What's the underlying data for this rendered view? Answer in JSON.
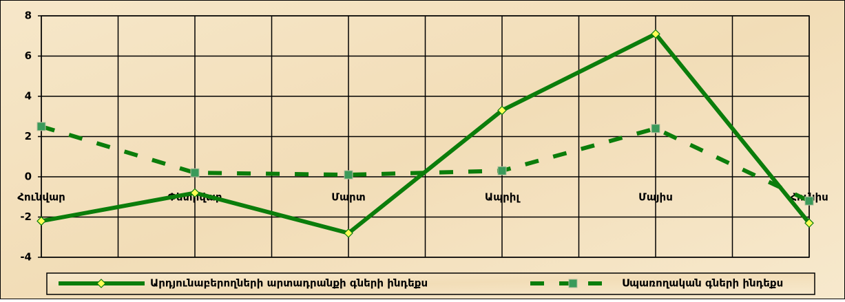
{
  "chart_data": {
    "type": "line",
    "categories": [
      "Հունվար",
      "Փետրվար",
      "Մարտ",
      "Ապրիլ",
      "Մայիս",
      "Հունիս"
    ],
    "series": [
      {
        "name": "Արդյունաբերողների արտադրանքի գների ինդեքս",
        "color": "#0b7d0b",
        "dash": "solid",
        "marker": "diamond",
        "marker_color": "#ffff55",
        "values": [
          -2.2,
          -0.8,
          -2.8,
          3.3,
          7.1,
          -2.3
        ]
      },
      {
        "name": "Սպառողական գների ինդեքս",
        "color": "#0b7d0b",
        "dash": "dashed",
        "marker": "square",
        "marker_color": "#3a9a5a",
        "values": [
          2.5,
          0.2,
          0.1,
          0.3,
          2.4,
          -1.2
        ]
      }
    ],
    "ylim": [
      -4,
      8
    ],
    "yticks": [
      -4,
      -2,
      0,
      2,
      4,
      6,
      8
    ],
    "grid": true,
    "legend": "bottom"
  }
}
